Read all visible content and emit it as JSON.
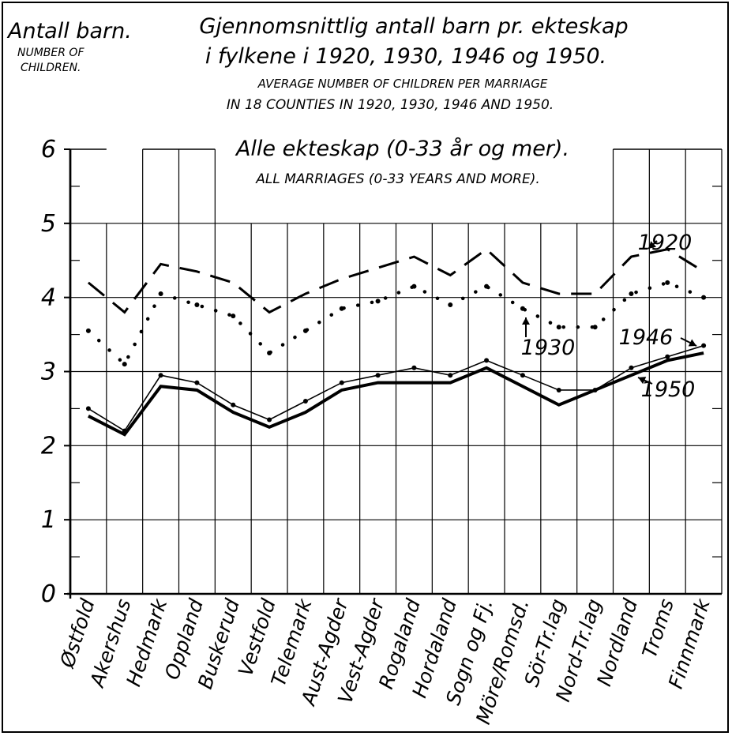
{
  "chart_data": {
    "type": "line",
    "title": "Gjennomsnittlig antall barn pr. ekteskap",
    "title_line2": "i fylkene i 1920, 1930, 1946 og 1950.",
    "subtitle": "AVERAGE NUMBER OF CHILDREN PER MARRIAGE",
    "subtitle_line2": "IN 18 COUNTIES IN 1920, 1930, 1946 AND 1950.",
    "panel_title": "Alle ekteskap (0-33 år og mer).",
    "panel_subtitle": "ALL MARRIAGES (0-33 YEARS AND MORE).",
    "ylabel": "Antall barn.",
    "ylabel_en_line1": "NUMBER OF",
    "ylabel_en_line2": "CHILDREN.",
    "ylim": [
      0,
      6
    ],
    "yticks": [
      "0",
      "1",
      "2",
      "3",
      "4",
      "5",
      "6"
    ],
    "grid": true,
    "categories": [
      "Østfold",
      "Akershus",
      "Hedmark",
      "Oppland",
      "Buskerud",
      "Vestfold",
      "Telemark",
      "Aust-Agder",
      "Vest-Agder",
      "Rogaland",
      "Hordaland",
      "Sogn og Fj.",
      "Möre/Romsd.",
      "Sör-Tr.lag",
      "Nord-Tr.lag",
      "Nordland",
      "Troms",
      "Finnmark"
    ],
    "series": [
      {
        "name": "1920",
        "style": "dashed",
        "values": [
          4.2,
          3.8,
          4.45,
          4.35,
          4.2,
          3.8,
          4.05,
          4.25,
          4.4,
          4.55,
          4.3,
          4.65,
          4.2,
          4.05,
          4.05,
          4.55,
          4.65,
          4.35
        ]
      },
      {
        "name": "1930",
        "style": "dotted",
        "values": [
          3.55,
          3.1,
          4.05,
          3.9,
          3.75,
          3.25,
          3.55,
          3.85,
          3.95,
          4.15,
          3.9,
          4.15,
          3.85,
          3.6,
          3.6,
          4.05,
          4.2,
          4.0
        ]
      },
      {
        "name": "1946",
        "style": "thin-solid-markers",
        "values": [
          2.5,
          2.2,
          2.95,
          2.85,
          2.55,
          2.35,
          2.6,
          2.85,
          2.95,
          3.05,
          2.95,
          3.15,
          2.95,
          2.75,
          2.75,
          3.05,
          3.2,
          3.35
        ]
      },
      {
        "name": "1950",
        "style": "thick-solid",
        "values": [
          2.4,
          2.15,
          2.8,
          2.75,
          2.45,
          2.25,
          2.45,
          2.75,
          2.85,
          2.85,
          2.85,
          3.05,
          2.8,
          2.55,
          2.75,
          2.95,
          3.15,
          3.25
        ]
      }
    ]
  }
}
